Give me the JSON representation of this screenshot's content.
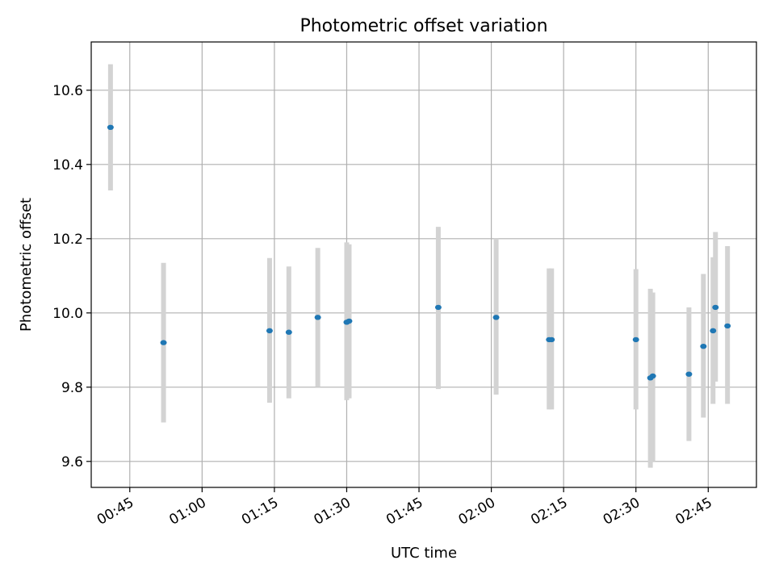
{
  "chart_data": {
    "type": "scatter",
    "title": "Photometric offset variation",
    "xlabel": "UTC time",
    "ylabel": "Photometric offset",
    "xlim": [
      "00:37",
      "02:55"
    ],
    "ylim": [
      9.53,
      10.73
    ],
    "x_ticks": [
      "00:45",
      "01:00",
      "01:15",
      "01:30",
      "01:45",
      "02:00",
      "02:15",
      "02:30",
      "02:45"
    ],
    "y_ticks": [
      9.6,
      9.8,
      10.0,
      10.2,
      10.4,
      10.6
    ],
    "grid": true,
    "points": [
      {
        "x": "00:41",
        "y": 10.5,
        "yerr_low": 10.33,
        "yerr_high": 10.67
      },
      {
        "x": "00:52",
        "y": 9.92,
        "yerr_low": 9.705,
        "yerr_high": 10.135
      },
      {
        "x": "01:14",
        "y": 9.952,
        "yerr_low": 9.758,
        "yerr_high": 10.148
      },
      {
        "x": "01:18",
        "y": 9.948,
        "yerr_low": 9.77,
        "yerr_high": 10.125
      },
      {
        "x": "01:24",
        "y": 9.988,
        "yerr_low": 9.8,
        "yerr_high": 10.175
      },
      {
        "x": "01:30",
        "y": 9.975,
        "yerr_low": 9.765,
        "yerr_high": 10.19
      },
      {
        "x": "01:30",
        "y": 9.978,
        "yerr_low": 9.77,
        "yerr_high": 10.185
      },
      {
        "x": "01:49",
        "y": 10.015,
        "yerr_low": 9.795,
        "yerr_high": 10.232
      },
      {
        "x": "02:01",
        "y": 9.988,
        "yerr_low": 9.78,
        "yerr_high": 10.2
      },
      {
        "x": "02:12",
        "y": 9.928,
        "yerr_low": 9.74,
        "yerr_high": 10.12
      },
      {
        "x": "02:12",
        "y": 9.928,
        "yerr_low": 9.74,
        "yerr_high": 10.12
      },
      {
        "x": "02:30",
        "y": 9.928,
        "yerr_low": 9.74,
        "yerr_high": 10.118
      },
      {
        "x": "02:33",
        "y": 9.825,
        "yerr_low": 9.583,
        "yerr_high": 10.065
      },
      {
        "x": "02:33",
        "y": 9.83,
        "yerr_low": 9.6,
        "yerr_high": 10.055
      },
      {
        "x": "02:41",
        "y": 9.835,
        "yerr_low": 9.655,
        "yerr_high": 10.015
      },
      {
        "x": "02:44",
        "y": 9.91,
        "yerr_low": 9.718,
        "yerr_high": 10.105
      },
      {
        "x": "02:46",
        "y": 9.952,
        "yerr_low": 9.755,
        "yerr_high": 10.15
      },
      {
        "x": "02:46",
        "y": 10.015,
        "yerr_low": 9.815,
        "yerr_high": 10.218
      },
      {
        "x": "02:49",
        "y": 9.965,
        "yerr_low": 9.755,
        "yerr_high": 10.18
      }
    ],
    "colors": {
      "point": "#1f77b4",
      "errbar": "#d3d3d3",
      "grid": "#b0b0b0"
    }
  }
}
